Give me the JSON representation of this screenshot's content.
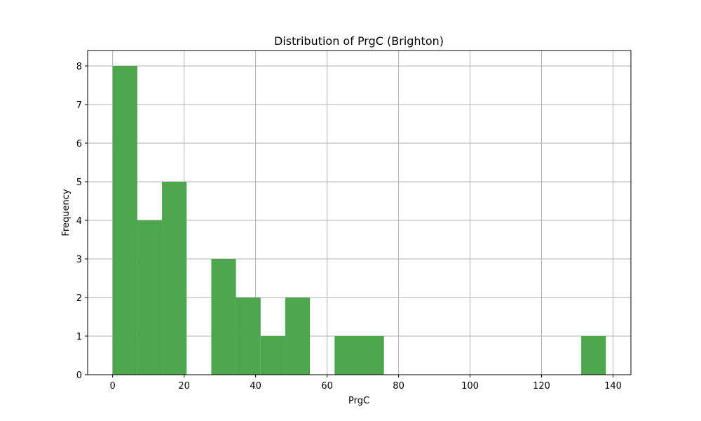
{
  "chart_data": {
    "type": "bar",
    "title": "Distribution of PrgC (Brighton)",
    "xlabel": "PrgC",
    "ylabel": "Frequency",
    "xlim": [
      -7,
      145
    ],
    "ylim": [
      0,
      8.4
    ],
    "xticks": [
      0,
      20,
      40,
      60,
      80,
      100,
      120,
      140
    ],
    "yticks": [
      0,
      1,
      2,
      3,
      4,
      5,
      6,
      7,
      8
    ],
    "grid": true,
    "bar_color": "#4ca64c",
    "bins": [
      {
        "start": 0.0,
        "end": 6.9,
        "count": 8
      },
      {
        "start": 6.9,
        "end": 13.8,
        "count": 4
      },
      {
        "start": 13.8,
        "end": 20.7,
        "count": 5
      },
      {
        "start": 20.7,
        "end": 27.6,
        "count": 0
      },
      {
        "start": 27.6,
        "end": 34.5,
        "count": 3
      },
      {
        "start": 34.5,
        "end": 41.4,
        "count": 2
      },
      {
        "start": 41.4,
        "end": 48.3,
        "count": 1
      },
      {
        "start": 48.3,
        "end": 55.2,
        "count": 2
      },
      {
        "start": 55.2,
        "end": 62.1,
        "count": 0
      },
      {
        "start": 62.1,
        "end": 69.0,
        "count": 1
      },
      {
        "start": 69.0,
        "end": 75.9,
        "count": 1
      },
      {
        "start": 75.9,
        "end": 82.8,
        "count": 0
      },
      {
        "start": 82.8,
        "end": 89.7,
        "count": 0
      },
      {
        "start": 89.7,
        "end": 96.6,
        "count": 0
      },
      {
        "start": 96.6,
        "end": 103.5,
        "count": 0
      },
      {
        "start": 103.5,
        "end": 110.4,
        "count": 0
      },
      {
        "start": 110.4,
        "end": 117.3,
        "count": 0
      },
      {
        "start": 117.3,
        "end": 124.2,
        "count": 0
      },
      {
        "start": 124.2,
        "end": 131.1,
        "count": 0
      },
      {
        "start": 131.1,
        "end": 138.0,
        "count": 1
      }
    ]
  }
}
